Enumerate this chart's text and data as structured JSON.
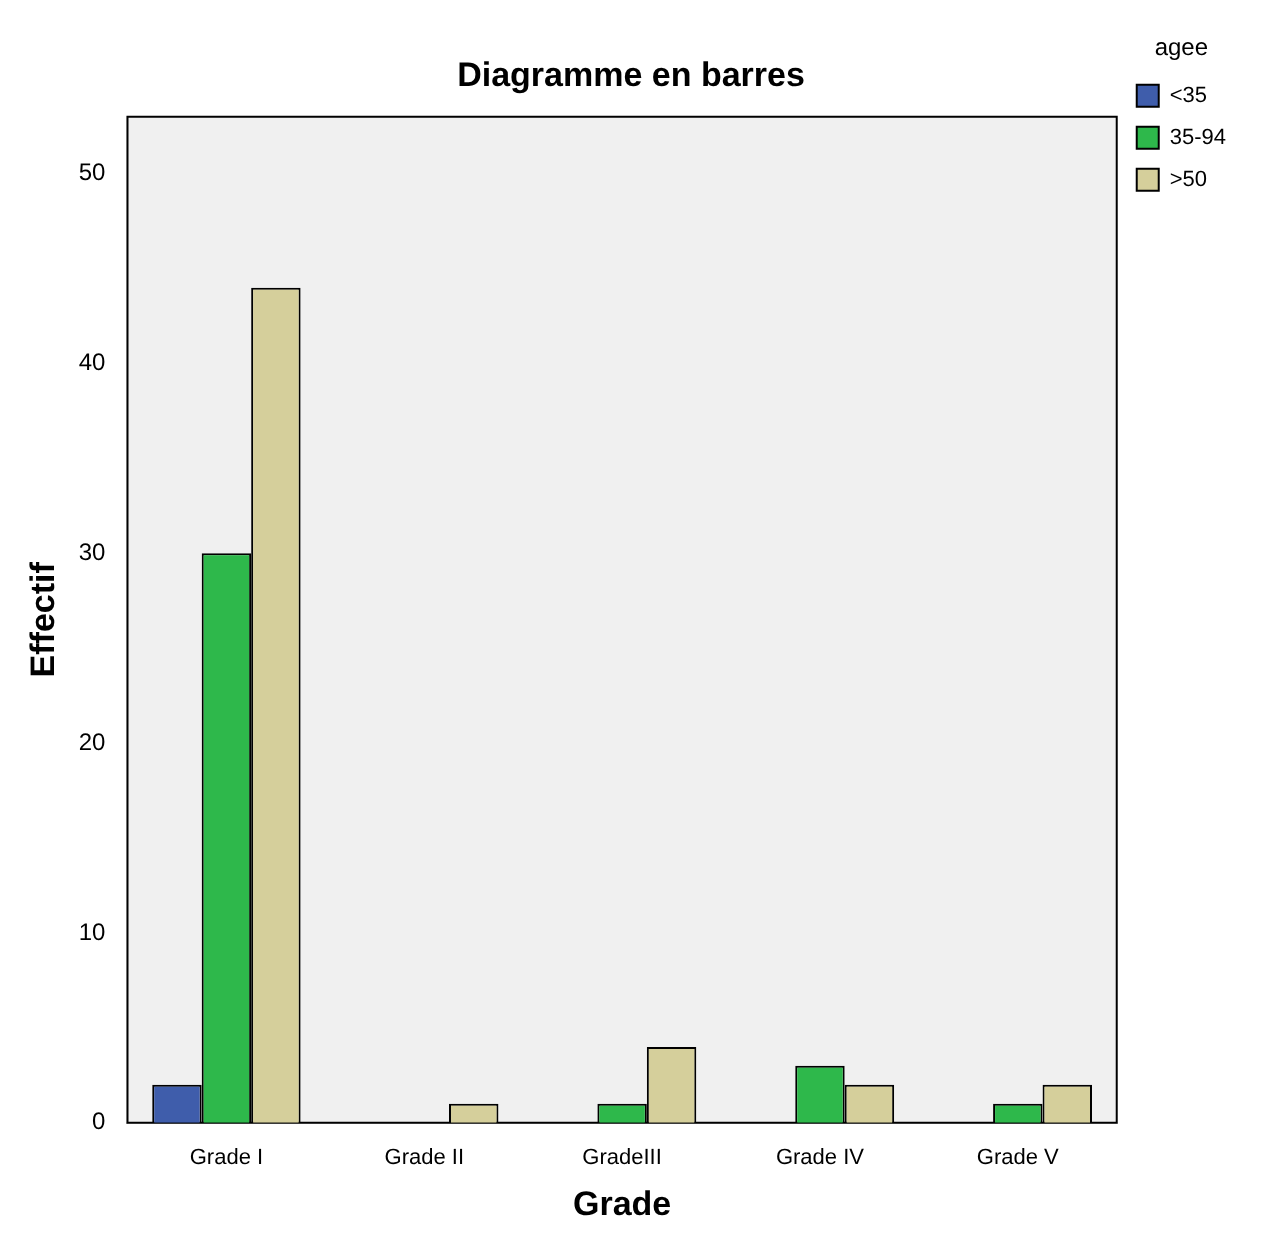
{
  "chart_data": {
    "type": "bar",
    "title": "Diagramme en barres",
    "xlabel": "Grade",
    "ylabel": "Effectif",
    "legend_title": "agee",
    "categories": [
      "Grade I",
      "Grade II",
      "GradeIII",
      "Grade IV",
      "Grade V"
    ],
    "series": [
      {
        "name": "<35",
        "color": "#3f5dab",
        "values": [
          2,
          null,
          null,
          null,
          null
        ]
      },
      {
        "name": "35-94",
        "color": "#2eb84b",
        "values": [
          30,
          null,
          1,
          3,
          1
        ]
      },
      {
        "name": ">50",
        "color": "#d5cf9b",
        "values": [
          44,
          1,
          4,
          2,
          2
        ]
      }
    ],
    "ylim": [
      0,
      53
    ],
    "yticks": [
      0,
      10,
      20,
      30,
      40,
      50
    ],
    "grid": false,
    "legend": "top right"
  }
}
